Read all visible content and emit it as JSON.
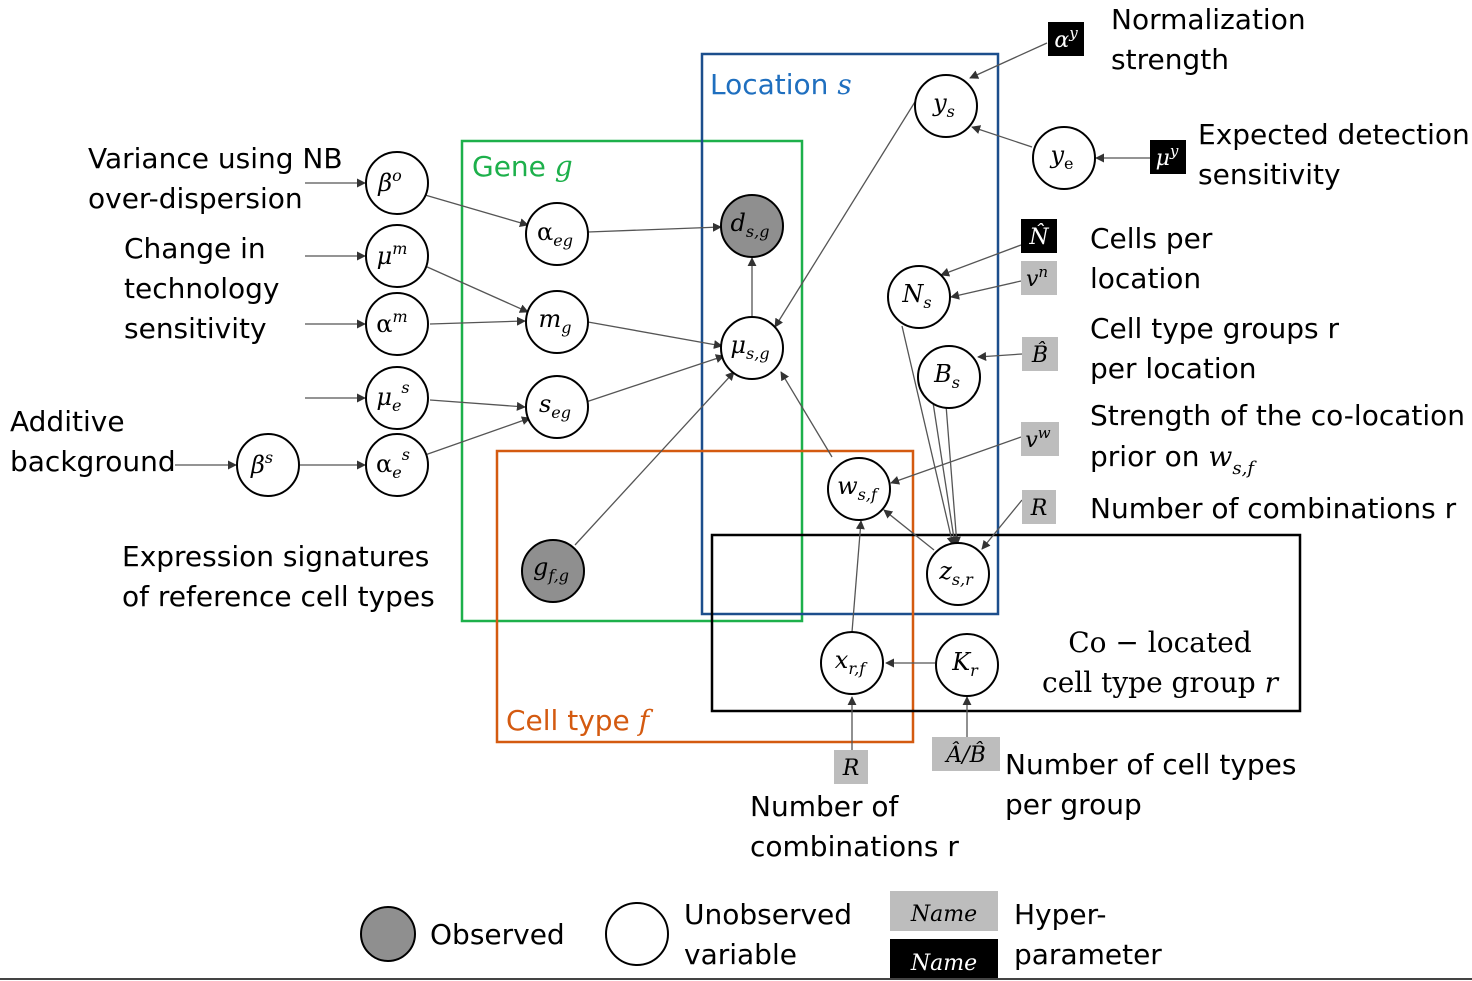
{
  "plates": {
    "gene": {
      "title": "Gene ",
      "var": "g",
      "color": "#1db04b"
    },
    "location": {
      "title": "Location ",
      "var": "s",
      "color": "#1c4e8c"
    },
    "celltype": {
      "title": "Cell type ",
      "var": "f",
      "color": "#d45a10"
    },
    "colocated": {
      "line1": "Co − located",
      "line2": "cell type group ",
      "var": "r",
      "color": "#000000"
    }
  },
  "nodes": {
    "beta_o": {
      "main": "β",
      "sup": "o"
    },
    "mu_m": {
      "main": "μ",
      "sup": "m"
    },
    "alpha_m": {
      "main": "α",
      "sup": "m"
    },
    "mu_es": {
      "main": "μ",
      "sub": "e",
      "sup": "s"
    },
    "alpha_es": {
      "main": "α",
      "sub": "e",
      "sup": "s"
    },
    "beta_s": {
      "main": "β",
      "sup": "s"
    },
    "alpha_eg": {
      "main": "α",
      "sub": "eg"
    },
    "m_g": {
      "main": "m",
      "sub": "g"
    },
    "s_eg": {
      "main": "s",
      "sub": "eg"
    },
    "g_fg": {
      "main": "g",
      "sub": "f,g"
    },
    "d_sg": {
      "main": "d",
      "sub": "s,g"
    },
    "mu_sg": {
      "main": "μ",
      "sub": "s,g"
    },
    "y_s": {
      "main": "y",
      "sub": "s"
    },
    "y_e": {
      "main": "y",
      "sub": "e"
    },
    "N_s": {
      "main": "N",
      "sub": "s"
    },
    "B_s": {
      "main": "B",
      "sub": "s"
    },
    "w_sf": {
      "main": "w",
      "sub": "s,f"
    },
    "z_sr": {
      "main": "z",
      "sub": "s,r"
    },
    "x_rf": {
      "main": "x",
      "sub": "r,f"
    },
    "K_r": {
      "main": "K",
      "sub": "r"
    }
  },
  "hyperparams": {
    "alpha_y": {
      "main": "α",
      "sup": "y"
    },
    "mu_y": {
      "main": "μ",
      "sup": "y"
    },
    "N_hat": {
      "main": "N̂"
    },
    "v_n": {
      "main": "v",
      "sup": "n"
    },
    "B_hat": {
      "main": "B̂"
    },
    "v_w": {
      "main": "v",
      "sup": "w"
    },
    "R_right": {
      "main": "R"
    },
    "R_bottom": {
      "main": "R"
    },
    "AB_hat": {
      "main": "Â/B̂"
    }
  },
  "labels": {
    "variance_1": "Variance using NB",
    "variance_2": "over-dispersion",
    "change_1": "Change in",
    "change_2": "technology",
    "change_3": "sensitivity",
    "additive_1": "Additive",
    "additive_2": "background",
    "expr_1": "Expression signatures",
    "expr_2": "of reference cell types",
    "norm_1": "Normalization",
    "norm_2": "strength",
    "expected_1": "Expected detection",
    "expected_2": "sensitivity",
    "cells_1": "Cells per",
    "cells_2": "location",
    "groups_1": "Cell type groups r",
    "groups_2": "per location",
    "strength_1": "Strength of the co-location",
    "strength_2": "prior on ",
    "strength_var": "w",
    "strength_sub": "s,f",
    "numcomb_right": "Number of combinations r",
    "numcomb_bottom_1": "Number of",
    "numcomb_bottom_2": "combinations r",
    "numtypes_1": "Number of cell types",
    "numtypes_2": "per group"
  },
  "legend": {
    "observed": "Observed",
    "unobserved_1": "Unobserved",
    "unobserved_2": "variable",
    "hyper_name": "Name",
    "hyper_1": "Hyper-",
    "hyper_2": "parameter",
    "observed_color": "#8f8f8f",
    "hyper_gray": "#bdbdbd",
    "hyper_black": "#000000"
  }
}
